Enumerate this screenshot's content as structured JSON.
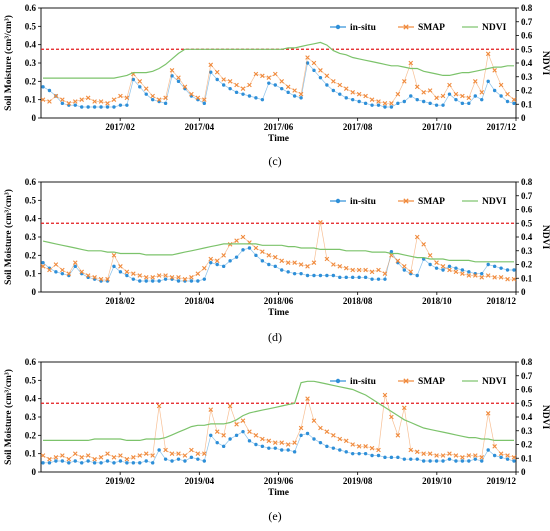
{
  "colors": {
    "insitu": "#2e8fd8",
    "smap": "#f08a3c",
    "ndvi": "#7cc36b",
    "threshold": "#e41a1c",
    "axis": "#000000"
  },
  "chart_data": [
    {
      "type": "line",
      "panel_label": "(c)",
      "xlabel": "Time",
      "ylabel": "Soil Moisture (cm³/cm³)",
      "y2label": "NDVI",
      "ylim": [
        0,
        0.6
      ],
      "y2lim": [
        0,
        0.8
      ],
      "yticks": [
        "0",
        "0.1",
        "0.2",
        "0.3",
        "0.4",
        "0.5",
        "0.6"
      ],
      "y2ticks": [
        "0",
        "0.1",
        "0.2",
        "0.3",
        "0.4",
        "0.5",
        "0.6",
        "0.7",
        "0.8"
      ],
      "xticks": [
        "2017/02",
        "2017/04",
        "2017/06",
        "2017/08",
        "2017/10",
        "2017/12"
      ],
      "threshold_y2": 0.5,
      "legend": [
        "in-situ",
        "SMAP",
        "NDVI"
      ],
      "legend_position": "top-right",
      "series": [
        {
          "name": "in-situ",
          "y": [
            0.17,
            0.15,
            0.12,
            0.08,
            0.07,
            0.07,
            0.06,
            0.06,
            0.06,
            0.06,
            0.06,
            0.06,
            0.07,
            0.07,
            0.21,
            0.17,
            0.13,
            0.1,
            0.09,
            0.08,
            0.23,
            0.2,
            0.16,
            0.12,
            0.1,
            0.08,
            0.25,
            0.21,
            0.18,
            0.16,
            0.14,
            0.13,
            0.12,
            0.11,
            0.1,
            0.19,
            0.18,
            0.16,
            0.14,
            0.12,
            0.11,
            0.3,
            0.26,
            0.22,
            0.18,
            0.15,
            0.13,
            0.11,
            0.1,
            0.09,
            0.08,
            0.07,
            0.07,
            0.06,
            0.06,
            0.08,
            0.09,
            0.12,
            0.1,
            0.09,
            0.08,
            0.07,
            0.07,
            0.13,
            0.1,
            0.08,
            0.08,
            0.12,
            0.1,
            0.2,
            0.15,
            0.12,
            0.09,
            0.08
          ]
        },
        {
          "name": "SMAP",
          "y": [
            0.1,
            0.09,
            0.12,
            0.1,
            0.08,
            0.09,
            0.1,
            0.11,
            0.09,
            0.09,
            0.08,
            0.1,
            0.12,
            0.11,
            0.24,
            0.2,
            0.16,
            0.12,
            0.1,
            0.11,
            0.26,
            0.22,
            0.17,
            0.13,
            0.11,
            0.1,
            0.29,
            0.25,
            0.21,
            0.2,
            0.18,
            0.16,
            0.18,
            0.24,
            0.23,
            0.22,
            0.24,
            0.2,
            0.17,
            0.15,
            0.13,
            0.33,
            0.3,
            0.26,
            0.23,
            0.2,
            0.18,
            0.16,
            0.14,
            0.13,
            0.12,
            0.1,
            0.09,
            0.08,
            0.08,
            0.13,
            0.2,
            0.3,
            0.17,
            0.14,
            0.15,
            0.11,
            0.12,
            0.18,
            0.13,
            0.12,
            0.11,
            0.2,
            0.14,
            0.35,
            0.26,
            0.18,
            0.13,
            0.1
          ]
        },
        {
          "name": "NDVI",
          "y": [
            0.29,
            0.29,
            0.29,
            0.29,
            0.29,
            0.29,
            0.29,
            0.29,
            0.29,
            0.29,
            0.29,
            0.29,
            0.3,
            0.31,
            0.33,
            0.33,
            0.33,
            0.34,
            0.36,
            0.39,
            0.43,
            0.47,
            0.5,
            0.5,
            0.5,
            0.5,
            0.5,
            0.5,
            0.5,
            0.5,
            0.5,
            0.5,
            0.5,
            0.5,
            0.5,
            0.5,
            0.5,
            0.5,
            0.51,
            0.51,
            0.52,
            0.53,
            0.54,
            0.55,
            0.53,
            0.49,
            0.47,
            0.46,
            0.44,
            0.43,
            0.42,
            0.41,
            0.4,
            0.39,
            0.38,
            0.38,
            0.37,
            0.36,
            0.36,
            0.34,
            0.33,
            0.32,
            0.31,
            0.31,
            0.32,
            0.33,
            0.33,
            0.34,
            0.35,
            0.36,
            0.37,
            0.37,
            0.38,
            0.38
          ]
        }
      ]
    },
    {
      "type": "line",
      "panel_label": "(d)",
      "xlabel": "Time",
      "ylabel": "Soil Moisture (cm³/cm³)",
      "y2label": "NDVI",
      "ylim": [
        0,
        0.6
      ],
      "y2lim": [
        0,
        0.8
      ],
      "yticks": [
        "0",
        "0.1",
        "0.2",
        "0.3",
        "0.4",
        "0.5",
        "0.6"
      ],
      "y2ticks": [
        "0",
        "0.1",
        "0.2",
        "0.3",
        "0.4",
        "0.5",
        "0.6",
        "0.7",
        "0.8"
      ],
      "xticks": [
        "2018/02",
        "2018/04",
        "2018/06",
        "2018/08",
        "2018/10",
        "2018/12"
      ],
      "threshold_y2": 0.5,
      "legend": [
        "in-situ",
        "SMAP",
        "NDVI"
      ],
      "legend_position": "top-right",
      "series": [
        {
          "name": "in-situ",
          "y": [
            0.16,
            0.13,
            0.11,
            0.1,
            0.09,
            0.14,
            0.1,
            0.08,
            0.07,
            0.06,
            0.06,
            0.14,
            0.11,
            0.09,
            0.07,
            0.06,
            0.06,
            0.06,
            0.06,
            0.07,
            0.07,
            0.06,
            0.06,
            0.06,
            0.06,
            0.07,
            0.16,
            0.15,
            0.14,
            0.17,
            0.19,
            0.23,
            0.24,
            0.2,
            0.17,
            0.15,
            0.14,
            0.12,
            0.11,
            0.1,
            0.1,
            0.09,
            0.09,
            0.09,
            0.09,
            0.09,
            0.08,
            0.08,
            0.08,
            0.08,
            0.08,
            0.07,
            0.07,
            0.07,
            0.22,
            0.16,
            0.12,
            0.1,
            0.09,
            0.18,
            0.15,
            0.13,
            0.12,
            0.14,
            0.13,
            0.12,
            0.11,
            0.1,
            0.1,
            0.15,
            0.14,
            0.13,
            0.12,
            0.12
          ]
        },
        {
          "name": "SMAP",
          "y": [
            0.14,
            0.12,
            0.15,
            0.12,
            0.1,
            0.16,
            0.11,
            0.09,
            0.08,
            0.07,
            0.07,
            0.2,
            0.14,
            0.11,
            0.1,
            0.09,
            0.08,
            0.08,
            0.09,
            0.09,
            0.08,
            0.08,
            0.07,
            0.08,
            0.1,
            0.13,
            0.18,
            0.17,
            0.2,
            0.26,
            0.28,
            0.3,
            0.27,
            0.24,
            0.22,
            0.2,
            0.19,
            0.17,
            0.16,
            0.16,
            0.15,
            0.14,
            0.16,
            0.38,
            0.18,
            0.15,
            0.14,
            0.13,
            0.12,
            0.12,
            0.12,
            0.11,
            0.12,
            0.1,
            0.2,
            0.17,
            0.14,
            0.11,
            0.3,
            0.26,
            0.2,
            0.16,
            0.14,
            0.12,
            0.11,
            0.1,
            0.09,
            0.09,
            0.08,
            0.09,
            0.08,
            0.08,
            0.07,
            0.07
          ]
        },
        {
          "name": "NDVI",
          "y": [
            0.37,
            0.36,
            0.35,
            0.34,
            0.33,
            0.32,
            0.31,
            0.3,
            0.3,
            0.3,
            0.29,
            0.29,
            0.28,
            0.28,
            0.28,
            0.28,
            0.27,
            0.27,
            0.27,
            0.27,
            0.27,
            0.28,
            0.29,
            0.3,
            0.31,
            0.32,
            0.33,
            0.34,
            0.35,
            0.35,
            0.35,
            0.35,
            0.35,
            0.35,
            0.34,
            0.34,
            0.34,
            0.34,
            0.33,
            0.33,
            0.32,
            0.32,
            0.32,
            0.31,
            0.31,
            0.31,
            0.31,
            0.3,
            0.3,
            0.3,
            0.3,
            0.29,
            0.29,
            0.29,
            0.28,
            0.28,
            0.27,
            0.26,
            0.25,
            0.25,
            0.24,
            0.24,
            0.24,
            0.23,
            0.23,
            0.23,
            0.23,
            0.22,
            0.22,
            0.22,
            0.22,
            0.22,
            0.22,
            0.22
          ]
        }
      ]
    },
    {
      "type": "line",
      "panel_label": "(e)",
      "xlabel": "Time",
      "ylabel": "Soil Moisture (cm³/cm³)",
      "y2label": "NDVI",
      "ylim": [
        0,
        0.6
      ],
      "y2lim": [
        0,
        0.8
      ],
      "yticks": [
        "0",
        "0.1",
        "0.2",
        "0.3",
        "0.4",
        "0.5",
        "0.6"
      ],
      "y2ticks": [
        "0",
        "0.1",
        "0.2",
        "0.3",
        "0.4",
        "0.5",
        "0.6",
        "0.7",
        "0.8"
      ],
      "xticks": [
        "2019/02",
        "2019/04",
        "2019/06",
        "2019/08",
        "2019/10",
        "2019/12"
      ],
      "threshold_y2": 0.5,
      "legend": [
        "in-situ",
        "SMAP",
        "NDVI"
      ],
      "legend_position": "top-right",
      "series": [
        {
          "name": "in-situ",
          "y": [
            0.05,
            0.05,
            0.06,
            0.06,
            0.05,
            0.06,
            0.05,
            0.06,
            0.05,
            0.05,
            0.06,
            0.05,
            0.06,
            0.05,
            0.05,
            0.05,
            0.06,
            0.05,
            0.12,
            0.07,
            0.06,
            0.07,
            0.06,
            0.08,
            0.07,
            0.06,
            0.2,
            0.16,
            0.14,
            0.18,
            0.2,
            0.22,
            0.17,
            0.15,
            0.14,
            0.13,
            0.13,
            0.12,
            0.12,
            0.11,
            0.2,
            0.21,
            0.18,
            0.16,
            0.14,
            0.13,
            0.12,
            0.11,
            0.1,
            0.1,
            0.1,
            0.09,
            0.09,
            0.08,
            0.08,
            0.08,
            0.07,
            0.07,
            0.07,
            0.06,
            0.06,
            0.06,
            0.06,
            0.07,
            0.06,
            0.06,
            0.06,
            0.07,
            0.06,
            0.12,
            0.09,
            0.08,
            0.07,
            0.06
          ]
        },
        {
          "name": "SMAP",
          "y": [
            0.09,
            0.07,
            0.08,
            0.09,
            0.07,
            0.1,
            0.08,
            0.09,
            0.07,
            0.08,
            0.1,
            0.08,
            0.09,
            0.07,
            0.08,
            0.09,
            0.1,
            0.09,
            0.36,
            0.12,
            0.1,
            0.1,
            0.09,
            0.12,
            0.1,
            0.1,
            0.34,
            0.22,
            0.2,
            0.36,
            0.26,
            0.28,
            0.22,
            0.2,
            0.18,
            0.17,
            0.16,
            0.16,
            0.15,
            0.16,
            0.24,
            0.4,
            0.28,
            0.24,
            0.22,
            0.2,
            0.18,
            0.17,
            0.15,
            0.14,
            0.14,
            0.13,
            0.12,
            0.42,
            0.3,
            0.2,
            0.35,
            0.12,
            0.11,
            0.1,
            0.1,
            0.09,
            0.09,
            0.1,
            0.09,
            0.08,
            0.09,
            0.09,
            0.08,
            0.32,
            0.14,
            0.1,
            0.09,
            0.08
          ]
        },
        {
          "name": "NDVI",
          "y": [
            0.23,
            0.23,
            0.23,
            0.23,
            0.23,
            0.23,
            0.23,
            0.23,
            0.24,
            0.24,
            0.24,
            0.24,
            0.24,
            0.23,
            0.23,
            0.23,
            0.24,
            0.24,
            0.24,
            0.25,
            0.27,
            0.29,
            0.31,
            0.33,
            0.34,
            0.34,
            0.35,
            0.35,
            0.35,
            0.36,
            0.38,
            0.41,
            0.43,
            0.44,
            0.45,
            0.46,
            0.47,
            0.48,
            0.49,
            0.5,
            0.65,
            0.66,
            0.66,
            0.65,
            0.64,
            0.63,
            0.62,
            0.61,
            0.6,
            0.58,
            0.56,
            0.53,
            0.5,
            0.47,
            0.44,
            0.41,
            0.38,
            0.36,
            0.34,
            0.32,
            0.31,
            0.3,
            0.29,
            0.28,
            0.27,
            0.26,
            0.25,
            0.25,
            0.24,
            0.24,
            0.23,
            0.23,
            0.23,
            0.23
          ]
        }
      ]
    }
  ]
}
